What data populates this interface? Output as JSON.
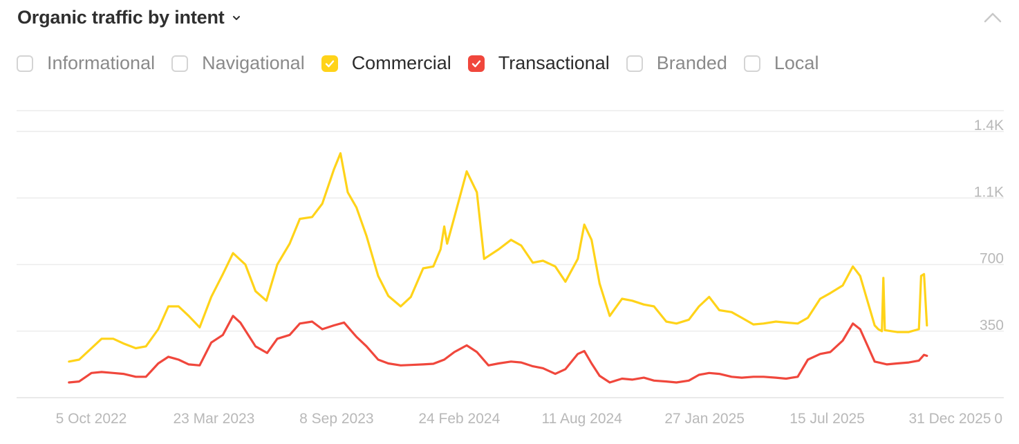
{
  "header": {
    "title": "Organic traffic by intent",
    "caret_icon": "chevron-down-icon",
    "collapse_icon": "chevron-up-icon"
  },
  "filters": [
    {
      "label": "Informational",
      "checked": false,
      "color": "#d4d4d4"
    },
    {
      "label": "Navigational",
      "checked": false,
      "color": "#d4d4d4"
    },
    {
      "label": "Commercial",
      "checked": true,
      "color": "#ffd319"
    },
    {
      "label": "Transactional",
      "checked": true,
      "color": "#f0473c"
    },
    {
      "label": "Branded",
      "checked": false,
      "color": "#d4d4d4"
    },
    {
      "label": "Local",
      "checked": false,
      "color": "#d4d4d4"
    }
  ],
  "chart_data": {
    "type": "line",
    "title": "",
    "x_axis": {
      "type": "date",
      "range": [
        "2022-09-01",
        "2026-01-13"
      ],
      "ticks": [
        {
          "date": "2022-10-05",
          "label": "5 Oct 2022"
        },
        {
          "date": "2023-03-23",
          "label": "23 Mar 2023"
        },
        {
          "date": "2023-09-08",
          "label": "8 Sep 2023"
        },
        {
          "date": "2024-02-24",
          "label": "24 Feb 2024"
        },
        {
          "date": "2024-08-11",
          "label": "11 Aug 2024"
        },
        {
          "date": "2025-01-27",
          "label": "27 Jan 2025"
        },
        {
          "date": "2025-07-15",
          "label": "15 Jul 2025"
        },
        {
          "date": "2025-12-31",
          "label": "31 Dec 2025"
        }
      ]
    },
    "y_axis": {
      "position": "right",
      "range": [
        0,
        1400
      ],
      "ticks": [
        {
          "value": 0,
          "label": "0"
        },
        {
          "value": 350,
          "label": "350"
        },
        {
          "value": 700,
          "label": "700"
        },
        {
          "value": 1050,
          "label": "1.1K"
        },
        {
          "value": 1400,
          "label": "1.4K"
        }
      ]
    },
    "grid": true,
    "series": [
      {
        "name": "Commercial",
        "color": "#ffd319",
        "points": [
          [
            "2022-10-01",
            190
          ],
          [
            "2022-10-15",
            200
          ],
          [
            "2022-11-01",
            260
          ],
          [
            "2022-11-15",
            310
          ],
          [
            "2022-12-01",
            310
          ],
          [
            "2022-12-15",
            285
          ],
          [
            "2023-01-01",
            260
          ],
          [
            "2023-01-15",
            270
          ],
          [
            "2023-02-01",
            360
          ],
          [
            "2023-02-15",
            480
          ],
          [
            "2023-03-01",
            480
          ],
          [
            "2023-03-15",
            430
          ],
          [
            "2023-03-30",
            370
          ],
          [
            "2023-04-15",
            530
          ],
          [
            "2023-05-01",
            650
          ],
          [
            "2023-05-15",
            760
          ],
          [
            "2023-06-01",
            700
          ],
          [
            "2023-06-15",
            560
          ],
          [
            "2023-06-30",
            510
          ],
          [
            "2023-07-15",
            700
          ],
          [
            "2023-08-01",
            810
          ],
          [
            "2023-08-15",
            940
          ],
          [
            "2023-09-01",
            950
          ],
          [
            "2023-09-15",
            1020
          ],
          [
            "2023-10-01",
            1200
          ],
          [
            "2023-10-10",
            1285
          ],
          [
            "2023-10-20",
            1080
          ],
          [
            "2023-11-01",
            1000
          ],
          [
            "2023-11-15",
            850
          ],
          [
            "2023-12-01",
            640
          ],
          [
            "2023-12-15",
            535
          ],
          [
            "2024-01-01",
            480
          ],
          [
            "2024-01-15",
            530
          ],
          [
            "2024-02-01",
            680
          ],
          [
            "2024-02-15",
            690
          ],
          [
            "2024-02-25",
            780
          ],
          [
            "2024-03-01",
            900
          ],
          [
            "2024-03-05",
            810
          ],
          [
            "2024-03-15",
            950
          ],
          [
            "2024-04-01",
            1190
          ],
          [
            "2024-04-15",
            1080
          ],
          [
            "2024-04-25",
            730
          ],
          [
            "2024-05-15",
            780
          ],
          [
            "2024-06-01",
            830
          ],
          [
            "2024-06-15",
            800
          ],
          [
            "2024-07-01",
            710
          ],
          [
            "2024-07-15",
            720
          ],
          [
            "2024-08-01",
            690
          ],
          [
            "2024-08-15",
            610
          ],
          [
            "2024-09-01",
            730
          ],
          [
            "2024-09-10",
            910
          ],
          [
            "2024-09-20",
            830
          ],
          [
            "2024-10-01",
            600
          ],
          [
            "2024-10-15",
            430
          ],
          [
            "2024-11-01",
            520
          ],
          [
            "2024-11-15",
            510
          ],
          [
            "2024-12-01",
            490
          ],
          [
            "2024-12-15",
            480
          ],
          [
            "2025-01-01",
            400
          ],
          [
            "2025-01-15",
            390
          ],
          [
            "2025-02-01",
            410
          ],
          [
            "2025-02-15",
            480
          ],
          [
            "2025-03-01",
            530
          ],
          [
            "2025-03-15",
            460
          ],
          [
            "2025-04-01",
            450
          ],
          [
            "2025-04-15",
            420
          ],
          [
            "2025-05-01",
            385
          ],
          [
            "2025-05-15",
            390
          ],
          [
            "2025-06-01",
            400
          ],
          [
            "2025-06-15",
            395
          ],
          [
            "2025-07-01",
            390
          ],
          [
            "2025-07-15",
            420
          ],
          [
            "2025-08-01",
            520
          ],
          [
            "2025-08-15",
            550
          ],
          [
            "2025-09-01",
            590
          ],
          [
            "2025-09-15",
            690
          ],
          [
            "2025-09-25",
            640
          ],
          [
            "2025-10-05",
            510
          ],
          [
            "2025-10-15",
            380
          ],
          [
            "2025-10-20",
            360
          ],
          [
            "2025-10-25",
            350
          ],
          [
            "2025-10-27",
            630
          ],
          [
            "2025-10-29",
            355
          ],
          [
            "2025-11-15",
            345
          ],
          [
            "2025-12-01",
            345
          ],
          [
            "2025-12-15",
            360
          ],
          [
            "2025-12-18",
            640
          ],
          [
            "2025-12-22",
            650
          ],
          [
            "2025-12-26",
            380
          ]
        ]
      },
      {
        "name": "Transactional",
        "color": "#f0473c",
        "points": [
          [
            "2022-10-01",
            80
          ],
          [
            "2022-10-15",
            85
          ],
          [
            "2022-11-01",
            130
          ],
          [
            "2022-11-15",
            135
          ],
          [
            "2022-12-01",
            130
          ],
          [
            "2022-12-15",
            125
          ],
          [
            "2023-01-01",
            110
          ],
          [
            "2023-01-15",
            110
          ],
          [
            "2023-02-01",
            180
          ],
          [
            "2023-02-15",
            215
          ],
          [
            "2023-03-01",
            200
          ],
          [
            "2023-03-15",
            175
          ],
          [
            "2023-03-30",
            170
          ],
          [
            "2023-04-15",
            290
          ],
          [
            "2023-05-01",
            330
          ],
          [
            "2023-05-15",
            430
          ],
          [
            "2023-05-25",
            395
          ],
          [
            "2023-06-15",
            270
          ],
          [
            "2023-07-01",
            235
          ],
          [
            "2023-07-15",
            310
          ],
          [
            "2023-08-01",
            330
          ],
          [
            "2023-08-15",
            390
          ],
          [
            "2023-09-01",
            400
          ],
          [
            "2023-09-15",
            360
          ],
          [
            "2023-10-01",
            380
          ],
          [
            "2023-10-15",
            395
          ],
          [
            "2023-11-01",
            320
          ],
          [
            "2023-11-15",
            270
          ],
          [
            "2023-12-01",
            200
          ],
          [
            "2023-12-15",
            180
          ],
          [
            "2024-01-01",
            170
          ],
          [
            "2024-01-15",
            172
          ],
          [
            "2024-02-01",
            175
          ],
          [
            "2024-02-15",
            178
          ],
          [
            "2024-03-01",
            200
          ],
          [
            "2024-03-15",
            240
          ],
          [
            "2024-04-01",
            275
          ],
          [
            "2024-04-15",
            240
          ],
          [
            "2024-05-01",
            170
          ],
          [
            "2024-05-15",
            180
          ],
          [
            "2024-06-01",
            190
          ],
          [
            "2024-06-15",
            185
          ],
          [
            "2024-07-01",
            165
          ],
          [
            "2024-07-15",
            155
          ],
          [
            "2024-08-01",
            125
          ],
          [
            "2024-08-15",
            150
          ],
          [
            "2024-09-01",
            230
          ],
          [
            "2024-09-10",
            245
          ],
          [
            "2024-09-20",
            180
          ],
          [
            "2024-10-01",
            115
          ],
          [
            "2024-10-15",
            80
          ],
          [
            "2024-11-01",
            100
          ],
          [
            "2024-11-15",
            95
          ],
          [
            "2024-12-01",
            105
          ],
          [
            "2024-12-15",
            90
          ],
          [
            "2025-01-01",
            85
          ],
          [
            "2025-01-15",
            80
          ],
          [
            "2025-02-01",
            90
          ],
          [
            "2025-02-15",
            120
          ],
          [
            "2025-03-01",
            130
          ],
          [
            "2025-03-15",
            125
          ],
          [
            "2025-04-01",
            110
          ],
          [
            "2025-04-15",
            105
          ],
          [
            "2025-05-01",
            110
          ],
          [
            "2025-05-15",
            110
          ],
          [
            "2025-06-01",
            105
          ],
          [
            "2025-06-15",
            100
          ],
          [
            "2025-07-01",
            110
          ],
          [
            "2025-07-15",
            200
          ],
          [
            "2025-08-01",
            230
          ],
          [
            "2025-08-15",
            240
          ],
          [
            "2025-09-01",
            300
          ],
          [
            "2025-09-15",
            390
          ],
          [
            "2025-09-25",
            360
          ],
          [
            "2025-10-05",
            275
          ],
          [
            "2025-10-15",
            190
          ],
          [
            "2025-11-01",
            175
          ],
          [
            "2025-11-15",
            180
          ],
          [
            "2025-12-01",
            185
          ],
          [
            "2025-12-15",
            195
          ],
          [
            "2025-12-22",
            225
          ],
          [
            "2025-12-26",
            220
          ]
        ]
      }
    ]
  }
}
